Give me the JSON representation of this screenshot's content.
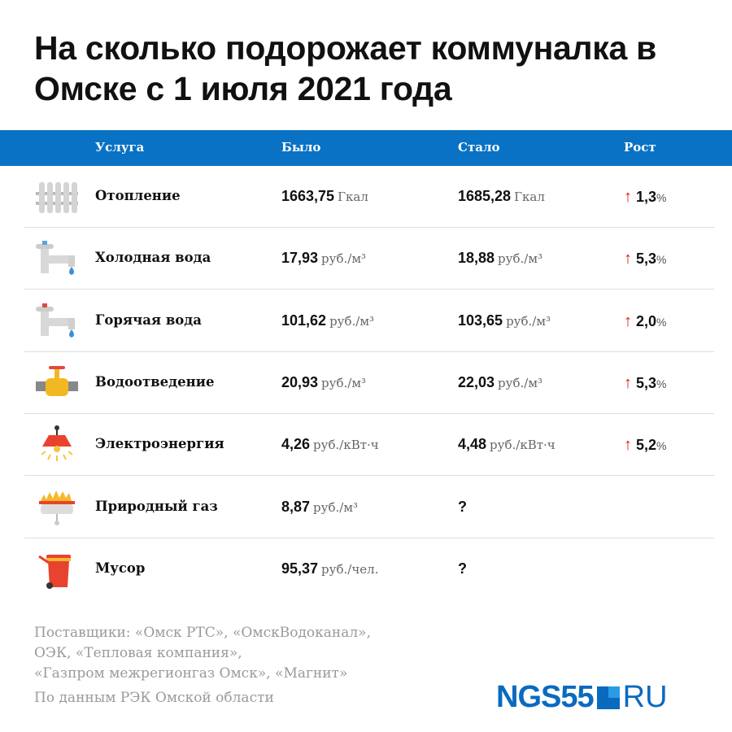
{
  "title": "На сколько подорожает коммуналка в Омске с 1 июля 2021 года",
  "header": {
    "service": "Услуга",
    "was": "Было",
    "now": "Стало",
    "growth": "Рост"
  },
  "colors": {
    "header": "#0a72c4",
    "arrow": "#e3131b",
    "logo": "#0a6abf"
  },
  "rows": [
    {
      "icon": "radiator-icon",
      "name": "Отопление",
      "was": "1663,75",
      "was_unit": "Гкал",
      "now": "1685,28",
      "now_unit": "Гкал",
      "growth": "1,3",
      "growth_unit": "%",
      "arrow": "↑"
    },
    {
      "icon": "cold-water-tap-icon",
      "name": "Холодная вода",
      "was": "17,93",
      "was_unit": "руб./м³",
      "now": "18,88",
      "now_unit": "руб./м³",
      "growth": "5,3",
      "growth_unit": "%",
      "arrow": "↑"
    },
    {
      "icon": "hot-water-tap-icon",
      "name": "Горячая вода",
      "was": "101,62",
      "was_unit": "руб./м³",
      "now": "103,65",
      "now_unit": "руб./м³",
      "growth": "2,0",
      "growth_unit": "%",
      "arrow": "↑"
    },
    {
      "icon": "pipe-valve-icon",
      "name": "Водоотведение",
      "was": "20,93",
      "was_unit": "руб./м³",
      "now": "22,03",
      "now_unit": "руб./м³",
      "growth": "5,3",
      "growth_unit": "%",
      "arrow": "↑"
    },
    {
      "icon": "lamp-icon",
      "name": "Электроэнергия",
      "was": "4,26",
      "was_unit": "руб./кВт·ч",
      "now": "4,48",
      "now_unit": "руб./кВт·ч",
      "growth": "5,2",
      "growth_unit": "%",
      "arrow": "↑"
    },
    {
      "icon": "gas-burner-icon",
      "name": "Природный газ",
      "was": "8,87",
      "was_unit": "руб./м³",
      "now": "?",
      "now_unit": "",
      "growth": "",
      "growth_unit": "",
      "arrow": ""
    },
    {
      "icon": "trash-bin-icon",
      "name": "Мусор",
      "was": "95,37",
      "was_unit": "руб./чел.",
      "now": "?",
      "now_unit": "",
      "growth": "",
      "growth_unit": "",
      "arrow": ""
    }
  ],
  "footer": {
    "suppliers": [
      "Поставщики: «Омск РТС», «ОмскВодоканал»,",
      "ОЭК, «Тепловая компания»,",
      "«Газпром межрегионгаз Омск», «Магнит»"
    ],
    "source": "По данным РЭК Омской области"
  },
  "logo": {
    "main": "NGS55",
    "suffix": "RU"
  }
}
